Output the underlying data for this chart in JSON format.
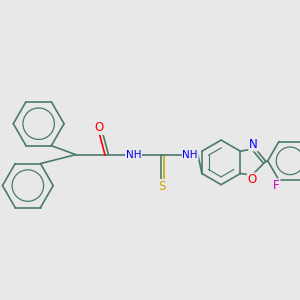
{
  "background_color": "#e8e8e8",
  "bond_color": "#4a7a6a",
  "bond_width": 1.2,
  "atom_colors": {
    "N": "#0000ff",
    "O": "#ff0000",
    "S": "#ccaa00",
    "F": "#cc00cc",
    "C": "#4a7a6a"
  },
  "font_size": 7.5
}
